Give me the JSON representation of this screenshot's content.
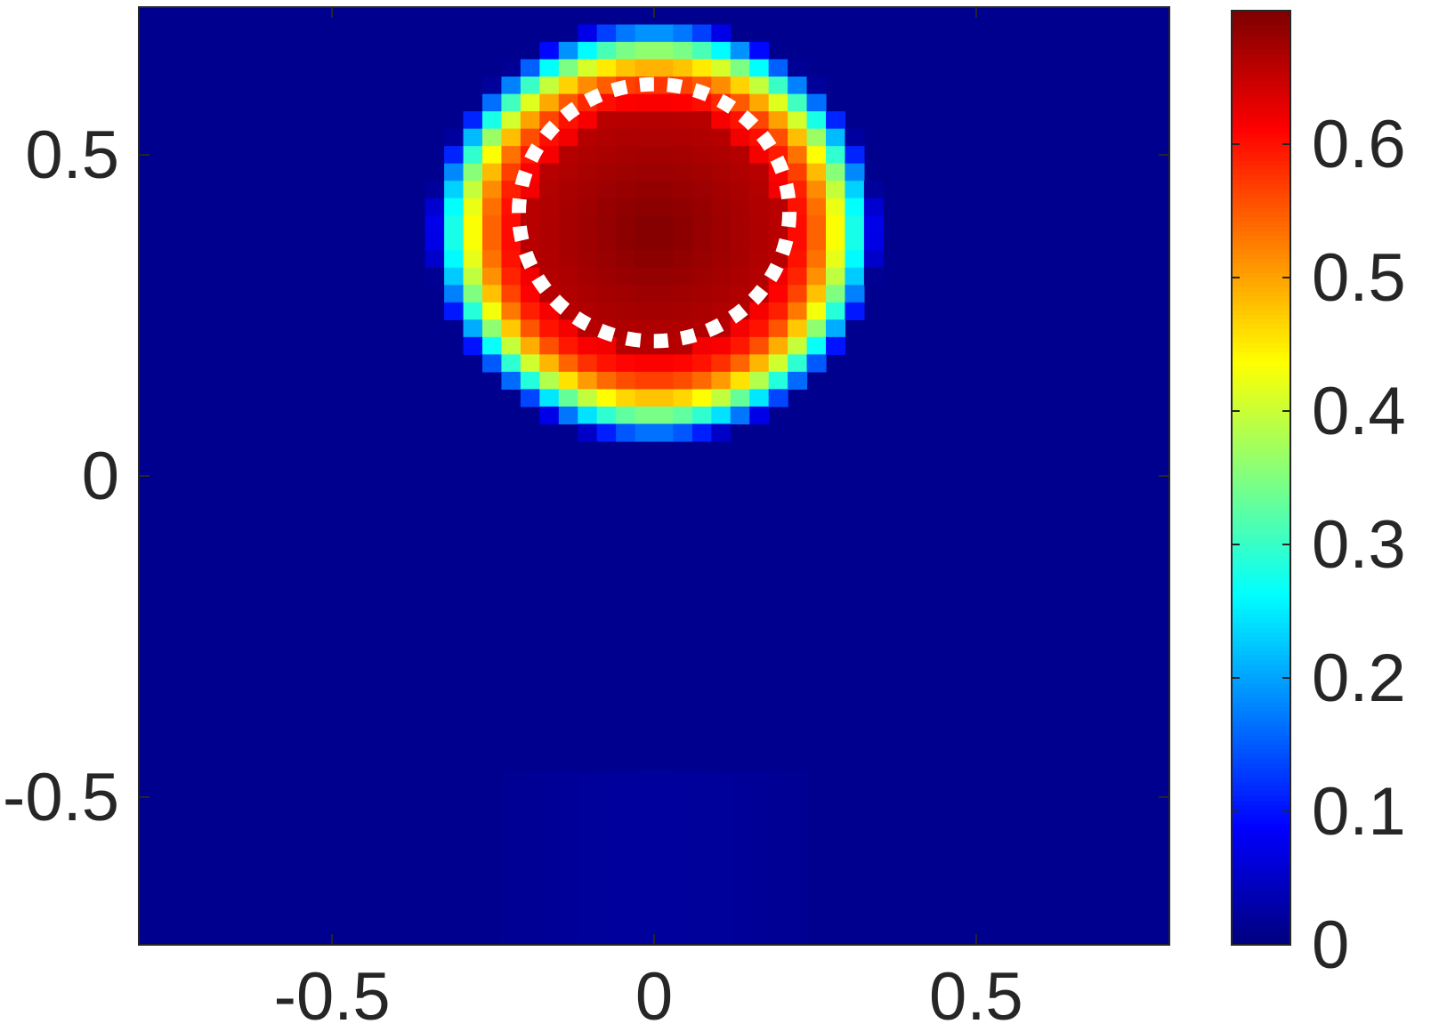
{
  "chart_data": {
    "type": "heatmap",
    "title": "",
    "xlabel": "",
    "ylabel": "",
    "xlim": [
      -0.8,
      0.8
    ],
    "ylim": [
      -0.73,
      0.73
    ],
    "x_ticks": [
      -0.5,
      0,
      0.5
    ],
    "x_tick_labels": [
      "-0.5",
      "0",
      "0.5"
    ],
    "y_ticks": [
      -0.5,
      0,
      0.5
    ],
    "y_tick_labels": [
      "-0.5",
      "0",
      "0.5"
    ],
    "colormap": "jet",
    "colorbar": {
      "range": [
        0,
        0.7
      ],
      "ticks": [
        0,
        0.1,
        0.2,
        0.3,
        0.4,
        0.5,
        0.6
      ],
      "tick_labels": [
        "0",
        "0.1",
        "0.2",
        "0.3",
        "0.4",
        "0.5",
        "0.6"
      ],
      "location": "right"
    },
    "grid": "off",
    "heat_blob": {
      "center_x": 0.0,
      "center_y": 0.38,
      "peak_value": 0.7,
      "core_radius": 0.2,
      "falloff_width": 0.15
    },
    "annotation_circle": {
      "style": "white dotted",
      "center_x": 0.0,
      "center_y": 0.41,
      "radius_x": 0.21,
      "radius_y": 0.2
    },
    "colors": {
      "background_low": "#00008f",
      "axis": "#262626",
      "annotation": "#ffffff"
    }
  }
}
